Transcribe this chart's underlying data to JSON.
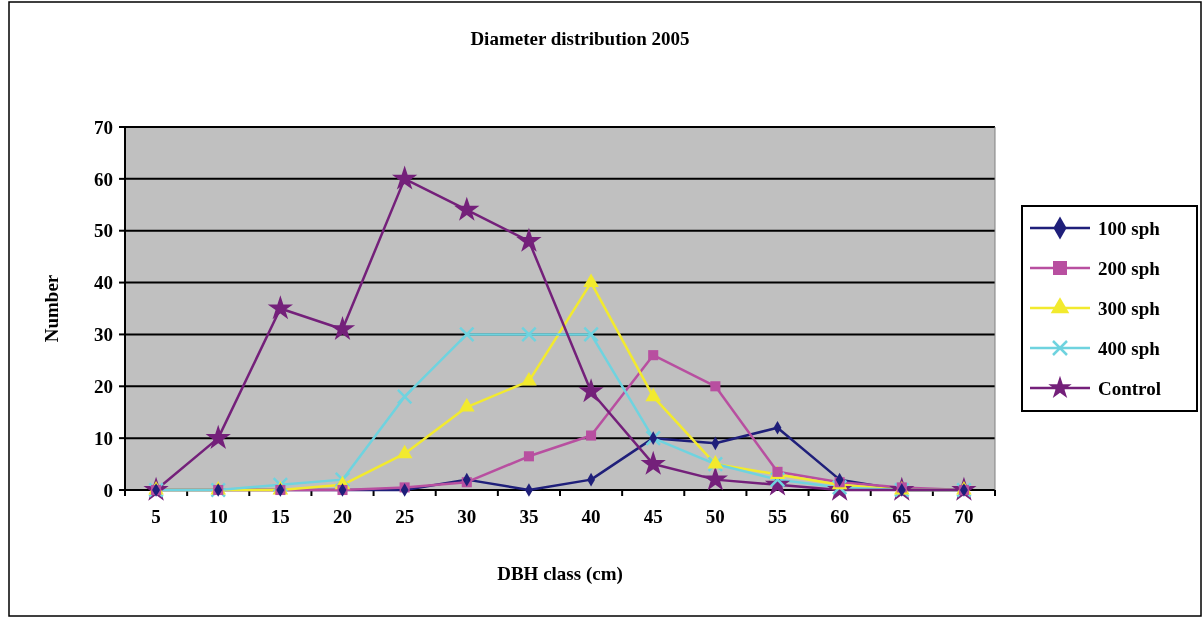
{
  "chart_data": {
    "type": "line",
    "title": "Diameter distribution 2005",
    "xlabel": "DBH class (cm)",
    "ylabel": "Number",
    "categories": [
      "5",
      "10",
      "15",
      "20",
      "25",
      "30",
      "35",
      "40",
      "45",
      "50",
      "55",
      "60",
      "65",
      "70"
    ],
    "series": [
      {
        "name": "100 sph",
        "color": "#1f1f7a",
        "marker": "diamond",
        "values": [
          0,
          0,
          0,
          0,
          0,
          2,
          0,
          2,
          10,
          9,
          12,
          2,
          0,
          0
        ]
      },
      {
        "name": "200 sph",
        "color": "#b84fa0",
        "marker": "square",
        "values": [
          0,
          0,
          0,
          0,
          0.5,
          1.5,
          6.5,
          10.5,
          26,
          20,
          3.5,
          1.5,
          0.5,
          0
        ]
      },
      {
        "name": "300 sph",
        "color": "#f2ea2e",
        "marker": "triangle",
        "values": [
          0,
          0,
          0,
          1,
          7,
          16,
          21,
          40,
          18,
          5,
          3,
          1,
          0,
          0
        ]
      },
      {
        "name": "400 sph",
        "color": "#6fd3df",
        "marker": "cross",
        "values": [
          0,
          0,
          1,
          2,
          18,
          30,
          30,
          30,
          10,
          5,
          2,
          0.5,
          0,
          0
        ]
      },
      {
        "name": "Control",
        "color": "#74207a",
        "marker": "star",
        "values": [
          0,
          10,
          35,
          31,
          60,
          54,
          48,
          19,
          5,
          2,
          1,
          0,
          0,
          0
        ]
      }
    ],
    "ylim": [
      0,
      70
    ],
    "yticks": [
      0,
      10,
      20,
      30,
      40,
      50,
      60,
      70
    ],
    "grid": "y",
    "legend": "right"
  }
}
